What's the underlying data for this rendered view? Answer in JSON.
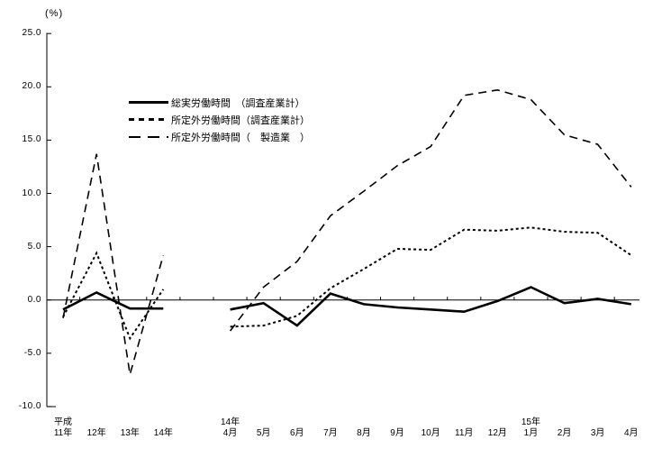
{
  "chart_data": {
    "type": "line",
    "title": "",
    "unit_label": "(%)",
    "ylim": [
      -10.0,
      25.0
    ],
    "grid": "none",
    "legend_position": "inside-top-left",
    "yticks": [
      25,
      20,
      15,
      10,
      5,
      0,
      -5,
      -10
    ],
    "ytick_labels": [
      "25.0",
      "20.0",
      "15.0",
      "10.0",
      "5.0",
      "0.0",
      "-5.0",
      "-10.0"
    ],
    "x_slots": [
      {
        "year_label": "平成",
        "label": "11年"
      },
      {
        "label": "12年"
      },
      {
        "label": "13年"
      },
      {
        "label": "14年"
      },
      {
        "spacer": true
      },
      {
        "year_label": "14年",
        "label": "4月"
      },
      {
        "label": "5月"
      },
      {
        "label": "6月"
      },
      {
        "label": "7月"
      },
      {
        "label": "8月"
      },
      {
        "label": "9月"
      },
      {
        "label": "10月"
      },
      {
        "label": "11月"
      },
      {
        "label": "12月"
      },
      {
        "year_label": "15年",
        "label": "1月"
      },
      {
        "label": "2月"
      },
      {
        "label": "3月"
      },
      {
        "label": "4月"
      }
    ],
    "series": [
      {
        "name": "総実労働時間　（調査産業計）",
        "style": "solid",
        "color": "#000000",
        "values": [
          -0.9,
          0.7,
          -0.8,
          -0.8,
          null,
          -0.9,
          -0.3,
          -2.4,
          0.6,
          -0.4,
          -0.7,
          -0.9,
          -1.1,
          -0.1,
          1.2,
          -0.3,
          0.1,
          -0.4
        ]
      },
      {
        "name": "所定外労働時間（調査産業計）",
        "style": "dotted",
        "color": "#000000",
        "values": [
          -1.6,
          4.4,
          -3.6,
          1.0,
          null,
          -2.5,
          -2.4,
          -1.5,
          1.1,
          2.9,
          4.8,
          4.7,
          6.6,
          6.5,
          6.8,
          6.4,
          6.3,
          4.2
        ]
      },
      {
        "name": "所定外労働時間（　製造業　）",
        "style": "dashed",
        "color": "#000000",
        "values": [
          -1.7,
          13.7,
          -7.0,
          4.2,
          null,
          -2.9,
          1.2,
          3.6,
          7.9,
          10.2,
          12.6,
          14.4,
          19.2,
          19.7,
          18.8,
          15.5,
          14.6,
          10.6
        ]
      }
    ]
  }
}
